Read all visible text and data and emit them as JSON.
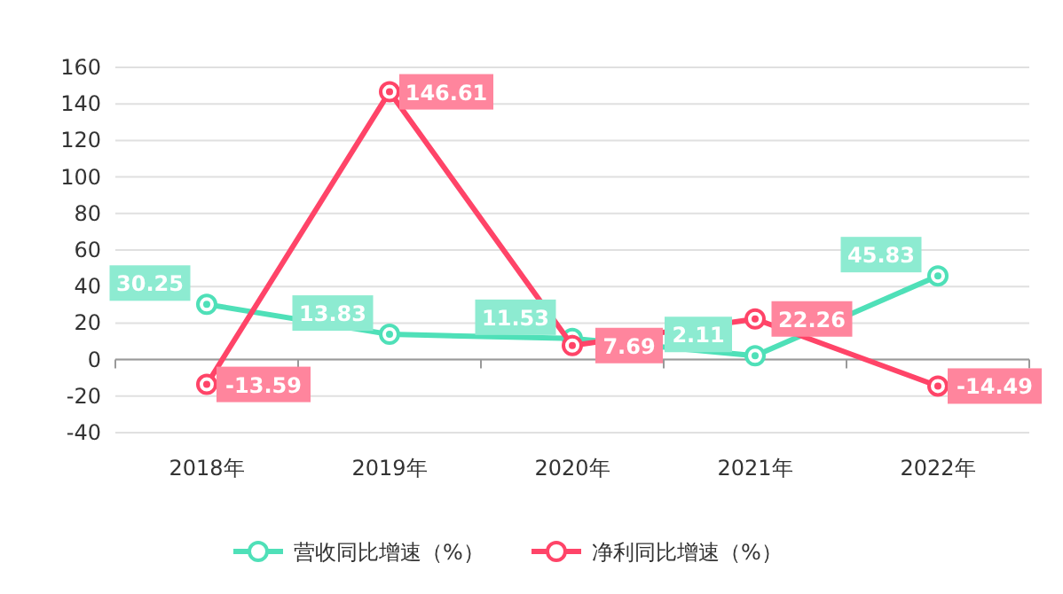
{
  "chart_data": {
    "type": "line",
    "categories": [
      "2018年",
      "2019年",
      "2020年",
      "2021年",
      "2022年"
    ],
    "series": [
      {
        "name": "营收同比增速（%）",
        "color": "#4fe0b8",
        "values": [
          30.25,
          13.83,
          11.53,
          2.11,
          45.83
        ]
      },
      {
        "name": "净利同比增速（%）",
        "color": "#ff4468",
        "values": [
          -13.59,
          146.61,
          7.69,
          22.26,
          -14.49
        ]
      }
    ],
    "ylim": [
      -40,
      160
    ],
    "yticks": [
      -40,
      -20,
      0,
      20,
      40,
      60,
      80,
      100,
      120,
      140,
      160
    ],
    "grid": "y",
    "legend": "bottom",
    "marker": "circle",
    "line_style": "solid",
    "data_labels": true
  }
}
